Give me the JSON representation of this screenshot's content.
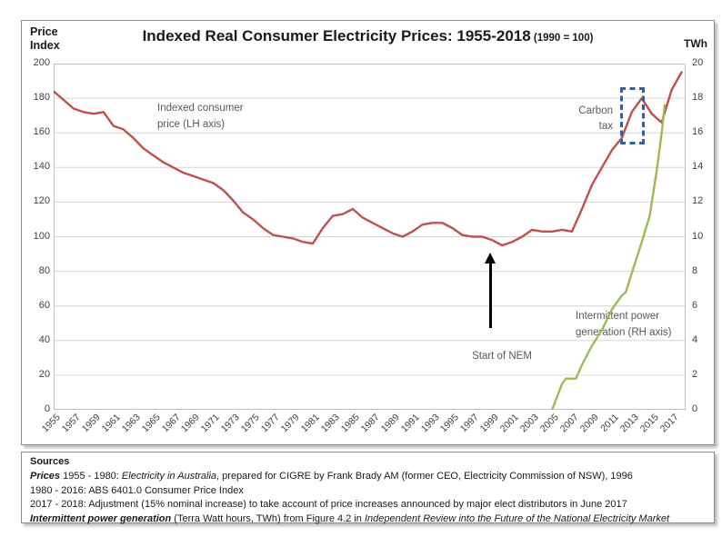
{
  "header": {
    "left_axis_label": "Price\nIndex",
    "title": "Indexed Real Consumer Electricity Prices: 1955-2018",
    "title_suffix": " (1990 = 100)",
    "right_axis_label": "TWh"
  },
  "chart_data": {
    "type": "line",
    "title": "Indexed Real Consumer Electricity Prices: 1955-2018 (1990 = 100)",
    "grid": true,
    "grid_color": "#d6d6d6",
    "frame_color": "#bfbfbf",
    "left_axis": {
      "label": "Price Index",
      "min": 0,
      "max": 200,
      "ticks": [
        0,
        20,
        40,
        60,
        80,
        100,
        120,
        140,
        160,
        180,
        200
      ]
    },
    "right_axis": {
      "label": "TWh",
      "min": 0,
      "max": 20,
      "ticks": [
        0,
        2,
        4,
        6,
        8,
        10,
        12,
        14,
        16,
        18,
        20
      ]
    },
    "x_axis": {
      "min_year": 1955,
      "max_year": 2018.4,
      "tick_labels": [
        "1955",
        "1957",
        "1959",
        "1961",
        "1963",
        "1965",
        "1967",
        "1969",
        "1971",
        "1973",
        "1975",
        "1977",
        "1979",
        "1981",
        "1983",
        "1985",
        "1987",
        "1989",
        "1991",
        "1993",
        "1995",
        "1997",
        "1999",
        "2001",
        "2003",
        "2005",
        "2007",
        "2009",
        "2011",
        "2013",
        "2015",
        "2017"
      ]
    },
    "series": [
      {
        "id": "consumer-price-line",
        "name": "Indexed consumer price (LH axis)",
        "axis": "left",
        "color": "#c0504d",
        "points": [
          [
            1955,
            184
          ],
          [
            1956,
            179
          ],
          [
            1957,
            174
          ],
          [
            1958,
            172
          ],
          [
            1959,
            171
          ],
          [
            1960,
            172
          ],
          [
            1961,
            164
          ],
          [
            1962,
            162
          ],
          [
            1963,
            157
          ],
          [
            1964,
            151
          ],
          [
            1965,
            147
          ],
          [
            1966,
            143
          ],
          [
            1967,
            140
          ],
          [
            1968,
            137
          ],
          [
            1969,
            135
          ],
          [
            1970,
            133
          ],
          [
            1971,
            131
          ],
          [
            1972,
            127
          ],
          [
            1973,
            121
          ],
          [
            1974,
            114
          ],
          [
            1975,
            110
          ],
          [
            1976,
            105
          ],
          [
            1977,
            101
          ],
          [
            1978,
            100
          ],
          [
            1979,
            99
          ],
          [
            1980,
            97
          ],
          [
            1981,
            96
          ],
          [
            1982,
            105
          ],
          [
            1983,
            112
          ],
          [
            1984,
            113
          ],
          [
            1985,
            116
          ],
          [
            1986,
            111
          ],
          [
            1987,
            108
          ],
          [
            1988,
            105
          ],
          [
            1989,
            102
          ],
          [
            1990,
            100
          ],
          [
            1991,
            103
          ],
          [
            1992,
            107
          ],
          [
            1993,
            108
          ],
          [
            1994,
            108
          ],
          [
            1995,
            105
          ],
          [
            1996,
            101
          ],
          [
            1997,
            100
          ],
          [
            1998,
            100
          ],
          [
            1999,
            98
          ],
          [
            2000,
            95
          ],
          [
            2001,
            97
          ],
          [
            2002,
            100
          ],
          [
            2003,
            104
          ],
          [
            2004,
            103
          ],
          [
            2005,
            103
          ],
          [
            2006,
            104
          ],
          [
            2007,
            103
          ],
          [
            2008,
            116
          ],
          [
            2009,
            130
          ],
          [
            2010,
            140
          ],
          [
            2011,
            150
          ],
          [
            2012,
            157
          ],
          [
            2013,
            172
          ],
          [
            2014,
            180
          ],
          [
            2015,
            171
          ],
          [
            2016,
            166
          ],
          [
            2017,
            185
          ],
          [
            2018,
            195
          ]
        ]
      },
      {
        "id": "intermittent-generation-line",
        "name": "Intermittent power generation (RH axis)",
        "axis": "right",
        "color": "#9bbb59",
        "points": [
          [
            2005,
            0
          ],
          [
            2006,
            1.5
          ],
          [
            2006.4,
            1.8
          ],
          [
            2007.4,
            1.8
          ],
          [
            2008,
            2.6
          ],
          [
            2009,
            3.7
          ],
          [
            2010,
            4.6
          ],
          [
            2011,
            5.8
          ],
          [
            2012,
            6.6
          ],
          [
            2012.4,
            6.8
          ],
          [
            2013,
            7.9
          ],
          [
            2014,
            9.7
          ],
          [
            2014.8,
            11.2
          ],
          [
            2015.5,
            13.8
          ],
          [
            2016,
            16.0
          ],
          [
            2016.3,
            17.6
          ]
        ]
      }
    ],
    "annotations": {
      "consumer_price_label": "Indexed consumer\nprice (LH axis)",
      "carbon_tax_label": "Carbon\ntax",
      "start_of_nem_label": "Start of NEM",
      "intermittent_label": "Intermittent power\ngeneration (RH axis)",
      "carbon_tax_box_color": "#376092"
    }
  },
  "sources": {
    "heading": "Sources",
    "lines": [
      [
        {
          "t": "Prices",
          "b": true,
          "i": true
        },
        {
          "t": " 1955 - 1980: "
        },
        {
          "t": "Electricity in Australia",
          "i": true
        },
        {
          "t": ", prepared for CIGRE by Frank Brady AM (former CEO, Electricity Commission of NSW), 1996"
        }
      ],
      [
        {
          "t": "1980 - 2016: ABS 6401.0 Consumer Price Index"
        }
      ],
      [
        {
          "t": "2017 - 2018: Adjustment (15% nominal increase) to take account of price increases announced by major elect distributors in June 2017"
        }
      ],
      [
        {
          "t": "Intermittent power generation",
          "b": true,
          "i": true
        },
        {
          "t": " (Terra Watt hours, TWh) from Figure 4.2 in "
        },
        {
          "t": "Independent Review into the Future of the National Electricity Market",
          "i": true
        }
      ]
    ]
  }
}
